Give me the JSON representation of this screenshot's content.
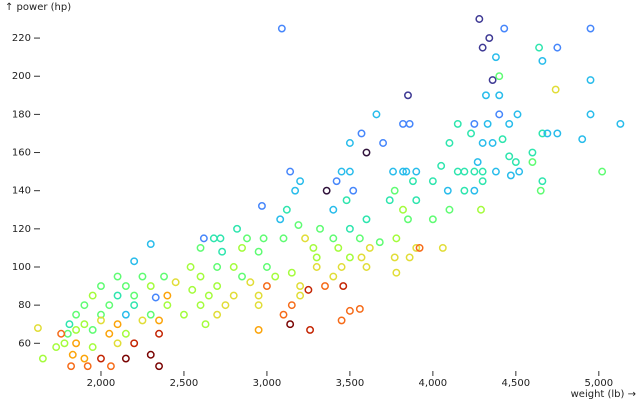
{
  "chart_data": {
    "type": "scatter",
    "x_label": "weight (lb) →",
    "y_label": "↑ power (hp)",
    "xlim": [
      1500,
      5200
    ],
    "ylim": [
      46,
      230
    ],
    "xticks": [
      {
        "value": 2000,
        "label": "2,000"
      },
      {
        "value": 2500,
        "label": "2,500"
      },
      {
        "value": 3000,
        "label": "3,000"
      },
      {
        "value": 3500,
        "label": "3,500"
      },
      {
        "value": 4000,
        "label": "4,000"
      },
      {
        "value": 4500,
        "label": "4,500"
      },
      {
        "value": 5000,
        "label": "5,000"
      }
    ],
    "yticks": [
      60,
      80,
      100,
      120,
      140,
      160,
      180,
      200,
      220
    ],
    "series": [
      {
        "x": [
          3090,
          4280,
          4340,
          4430,
          4950,
          4300,
          4380,
          4640,
          4750,
          4660,
          4950,
          4360,
          4740,
          4400,
          3850,
          4320,
          4400,
          4950,
          3660,
          3820,
          3860,
          4150,
          4250,
          4330,
          4510,
          4400,
          4460,
          5130,
          3570,
          4230,
          4660,
          4690,
          4750,
          4900,
          3500,
          3700,
          4100,
          4300,
          4360,
          4420,
          3600,
          4600,
          4460,
          4270,
          4500,
          4600,
          3760,
          3820,
          3840,
          3900,
          4050,
          4150,
          4190,
          4250,
          4300,
          4380,
          4470,
          4520,
          4660,
          5020,
          3140,
          3200,
          3360,
          3420,
          3450,
          3500,
          3520,
          3770,
          3880,
          4000,
          4090,
          4190,
          4250,
          4300,
          4650,
          3170,
          2970,
          3120,
          3400,
          3480,
          3740,
          3820,
          3900,
          4100,
          4290,
          3080,
          3600,
          3850,
          4000,
          2820,
          3190,
          3320,
          3500,
          2300,
          2620,
          2680,
          2720,
          2880,
          2980,
          3100,
          3230,
          3400,
          3560,
          3680,
          3780,
          3900,
          4060,
          3920,
          3430,
          3620,
          3280,
          2600,
          2850,
          2730,
          2950,
          3300,
          3500,
          3570,
          3770,
          3860,
          2200,
          2380,
          2540,
          2700,
          2800,
          3000,
          3150,
          3300,
          3450,
          3600,
          3780,
          2100,
          2250,
          2600,
          2850,
          3050,
          3400,
          2000,
          2150,
          2300,
          2450,
          2700,
          2900,
          3000,
          3200,
          3350,
          3460,
          3250,
          1950,
          2100,
          2200,
          2330,
          2400,
          2550,
          2650,
          2800,
          2950,
          3200,
          1900,
          2050,
          2200,
          2400,
          2600,
          2750,
          2950,
          3150,
          1850,
          2000,
          2150,
          2300,
          2500,
          2700,
          3100,
          3500,
          3560,
          1810,
          1900,
          2000,
          2100,
          2250,
          2350,
          2630,
          3140,
          3450,
          1620,
          1800,
          1850,
          1950,
          2050,
          2150,
          2350,
          2950,
          3260,
          1760,
          1780,
          1850,
          1950,
          2100,
          2200,
          1730,
          1900,
          2000,
          2150,
          2300,
          1650,
          1820,
          1920,
          2060,
          2350,
          1830
        ],
        "values": [
          225,
          230,
          220,
          225,
          225,
          215,
          210,
          215,
          215,
          208,
          198,
          198,
          193,
          200,
          190,
          190,
          190,
          180,
          180,
          175,
          175,
          175,
          175,
          175,
          180,
          180,
          175,
          175,
          170,
          170,
          170,
          170,
          170,
          167,
          165,
          165,
          165,
          165,
          165,
          167,
          160,
          160,
          158,
          155,
          155,
          155,
          150,
          150,
          150,
          150,
          153,
          150,
          150,
          150,
          150,
          150,
          148,
          150,
          145,
          150,
          150,
          145,
          140,
          145,
          150,
          150,
          140,
          140,
          145,
          145,
          140,
          140,
          140,
          145,
          140,
          140,
          132,
          130,
          130,
          135,
          135,
          130,
          135,
          130,
          130,
          125,
          125,
          125,
          125,
          120,
          122,
          120,
          120,
          112,
          115,
          115,
          115,
          115,
          115,
          115,
          115,
          115,
          115,
          113,
          115,
          110,
          110,
          110,
          110,
          110,
          110,
          110,
          110,
          108,
          108,
          105,
          105,
          105,
          105,
          105,
          103,
          95,
          100,
          100,
          100,
          100,
          97,
          100,
          100,
          100,
          97,
          95,
          95,
          95,
          95,
          95,
          95,
          90,
          90,
          90,
          92,
          90,
          92,
          90,
          90,
          90,
          90,
          88,
          85,
          85,
          85,
          84,
          85,
          88,
          85,
          85,
          85,
          85,
          80,
          80,
          80,
          80,
          80,
          80,
          80,
          80,
          75,
          75,
          75,
          75,
          75,
          75,
          75,
          77,
          78,
          70,
          70,
          72,
          70,
          72,
          72,
          70,
          70,
          72,
          68,
          65,
          67,
          67,
          65,
          65,
          65,
          67,
          67,
          65,
          60,
          60,
          58,
          60,
          60,
          58,
          52,
          52,
          52,
          54,
          52,
          48,
          48,
          48,
          48,
          54
        ],
        "colors": [
          "#4686fb",
          "#3e3994",
          "#3e3994",
          "#4686fb",
          "#4686fb",
          "#3e3994",
          "#28bceb",
          "#2ee5ae",
          "#4686fb",
          "#28bceb",
          "#28bceb",
          "#3e3994",
          "#e1dd37",
          "#5ffc73",
          "#3e3994",
          "#28bceb",
          "#28bceb",
          "#28bceb",
          "#28bceb",
          "#4686fb",
          "#4686fb",
          "#2ee5ae",
          "#4686fb",
          "#28bceb",
          "#28bceb",
          "#4686fb",
          "#28bceb",
          "#28bceb",
          "#4686fb",
          "#2ee5ae",
          "#2ee5ae",
          "#28bceb",
          "#28bceb",
          "#28bceb",
          "#28bceb",
          "#4686fb",
          "#2ee5ae",
          "#28bceb",
          "#28bceb",
          "#2ee5ae",
          "#30123b",
          "#2ee5ae",
          "#2ee5ae",
          "#28bceb",
          "#2ee5ae",
          "#5ffc73",
          "#28bceb",
          "#28bceb",
          "#28bceb",
          "#28bceb",
          "#2ee5ae",
          "#2ee5ae",
          "#2ee5ae",
          "#2ee5ae",
          "#2ee5ae",
          "#28bceb",
          "#28bceb",
          "#28bceb",
          "#2ee5ae",
          "#5ffc73",
          "#4686fb",
          "#28bceb",
          "#30123b",
          "#4686fb",
          "#28bceb",
          "#28bceb",
          "#4686fb",
          "#5ffc73",
          "#2ee5ae",
          "#2ee5ae",
          "#28bceb",
          "#2ee5ae",
          "#28bceb",
          "#2ee5ae",
          "#5ffc73",
          "#28bceb",
          "#4686fb",
          "#2ee5ae",
          "#28bceb",
          "#2ee5ae",
          "#2ee5ae",
          "#a4fc3c",
          "#2ee5ae",
          "#5ffc73",
          "#a4fc3c",
          "#28bceb",
          "#2ee5ae",
          "#5ffc73",
          "#5ffc73",
          "#2ee5ae",
          "#5ffc73",
          "#5ffc73",
          "#2ee5ae",
          "#28bceb",
          "#4686fb",
          "#2ee5ae",
          "#2ee5ae",
          "#5ffc73",
          "#5ffc73",
          "#5ffc73",
          "#e1dd37",
          "#5ffc73",
          "#5ffc73",
          "#5ffc73",
          "#a4fc3c",
          "#e1dd37",
          "#e1dd37",
          "#f66b19",
          "#a4fc3c",
          "#e1dd37",
          "#a4fc3c",
          "#5ffc73",
          "#a4fc3c",
          "#2ee5ae",
          "#5ffc73",
          "#a4fc3c",
          "#a4fc3c",
          "#e1dd37",
          "#e1dd37",
          "#e1dd37",
          "#28bceb",
          "#5ffc73",
          "#a4fc3c",
          "#5ffc73",
          "#a4fc3c",
          "#5ffc73",
          "#a4fc3c",
          "#e1dd37",
          "#e1dd37",
          "#e1dd37",
          "#e1dd37",
          "#5ffc73",
          "#5ffc73",
          "#a4fc3c",
          "#5ffc73",
          "#a4fc3c",
          "#e1dd37",
          "#5ffc73",
          "#5ffc73",
          "#a4fc3c",
          "#e1dd37",
          "#a4fc3c",
          "#e1dd37",
          "#f66b19",
          "#e1dd37",
          "#f66b19",
          "#c42503",
          "#c42503",
          "#a4fc3c",
          "#2ee5ae",
          "#5ffc73",
          "#4686fb",
          "#fba40a",
          "#a4fc3c",
          "#a4fc3c",
          "#e1dd37",
          "#e1dd37",
          "#e1dd37",
          "#5ffc73",
          "#5ffc73",
          "#2ee5ae",
          "#a4fc3c",
          "#a4fc3c",
          "#e1dd37",
          "#e1dd37",
          "#f66b19",
          "#5ffc73",
          "#5ffc73",
          "#28bceb",
          "#5ffc73",
          "#a4fc3c",
          "#e1dd37",
          "#f66b19",
          "#f66b19",
          "#f66b19",
          "#2ee5ae",
          "#a4fc3c",
          "#e1dd37",
          "#fba40a",
          "#e1dd37",
          "#fba40a",
          "#a4fc3c",
          "#7a0403",
          "#f66b19",
          "#e1dd37",
          "#5ffc73",
          "#a4fc3c",
          "#5ffc73",
          "#fba40a",
          "#a4fc3c",
          "#c42503",
          "#fba40a",
          "#c42503",
          "#f66b19",
          "#a4fc3c",
          "#fba40a",
          "#a4fc3c",
          "#e1dd37",
          "#c42503",
          "#a4fc3c",
          "#fba40a",
          "#c42503",
          "#7a0403",
          "#7a0403",
          "#a4fc3c",
          "#f66b19",
          "#f66b19",
          "#f66b19",
          "#7a0403",
          "#fba40a"
        ]
      }
    ]
  }
}
